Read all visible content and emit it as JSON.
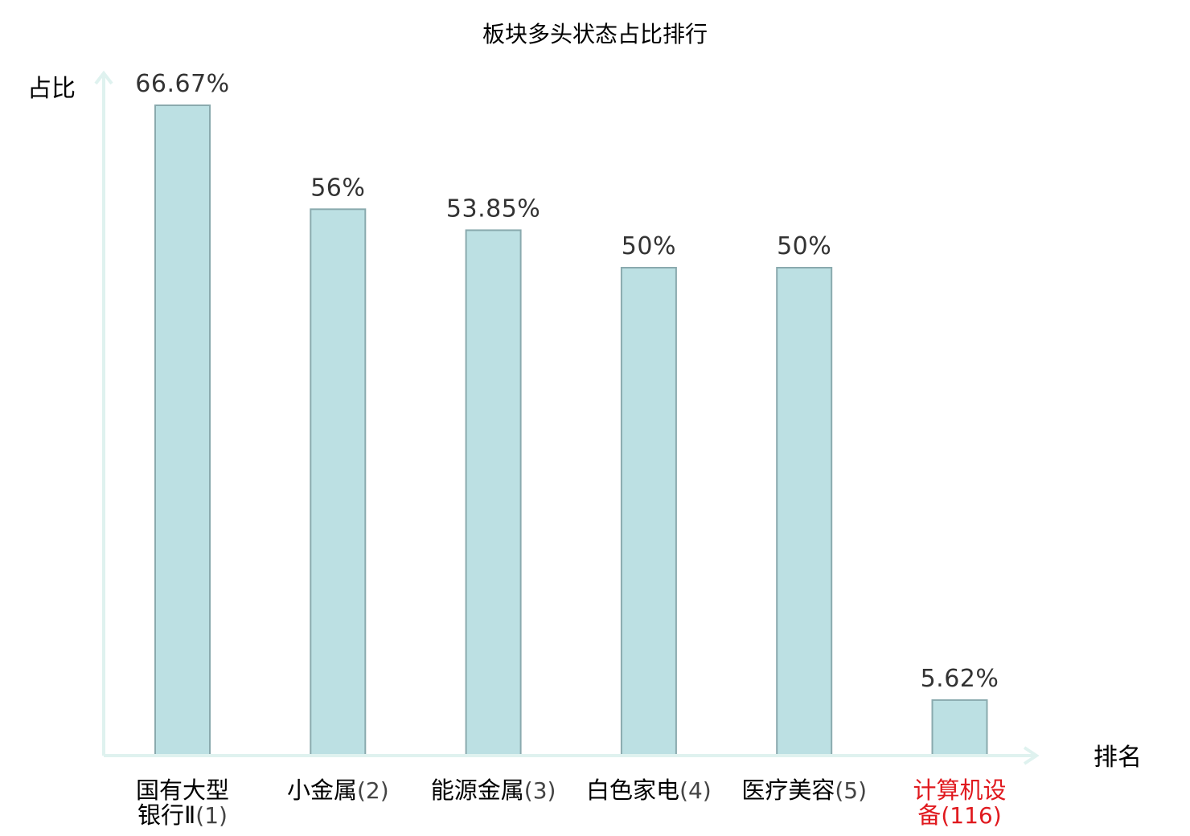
{
  "chart_data": {
    "type": "bar",
    "title": "板块多头状态占比排行",
    "ylabel": "占比",
    "xlabel": "排名",
    "ylim": [
      0,
      70
    ],
    "grid": false,
    "categories": [
      {
        "lines": [
          "国有大型",
          "银行Ⅱ"
        ],
        "rank": "(1)",
        "highlight": false
      },
      {
        "lines": [
          "小金属"
        ],
        "rank": "(2)",
        "highlight": false
      },
      {
        "lines": [
          "能源金属"
        ],
        "rank": "(3)",
        "highlight": false
      },
      {
        "lines": [
          "白色家电"
        ],
        "rank": "(4)",
        "highlight": false
      },
      {
        "lines": [
          "医疗美容"
        ],
        "rank": "(5)",
        "highlight": false
      },
      {
        "lines": [
          "计算机设",
          "备"
        ],
        "rank": "(116)",
        "highlight": true
      }
    ],
    "values": [
      66.67,
      56,
      53.85,
      50,
      50,
      5.62
    ],
    "value_labels": [
      "66.67%",
      "56%",
      "53.85%",
      "50%",
      "50%",
      "5.62%"
    ],
    "colors": {
      "bar_fill": "#bce0e3",
      "bar_stroke": "#8aaaae",
      "axis": "#dff2ef",
      "highlight": "#e0191e"
    }
  }
}
